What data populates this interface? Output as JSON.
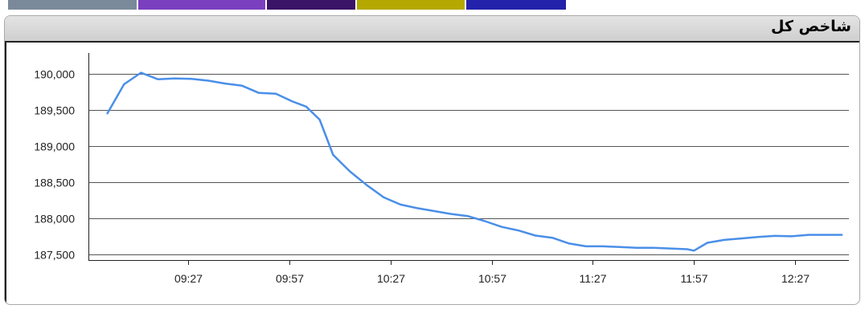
{
  "header": {
    "title": "شاخص کل",
    "strip_colors": [
      "#7a8a9a",
      "#7a3fbf",
      "#3a1466",
      "#b5a800",
      "#2222aa"
    ]
  },
  "chart_data": {
    "type": "line",
    "title": "شاخص کل",
    "xlabel": "",
    "ylabel": "",
    "x_tick_labels": [
      "09:27",
      "09:57",
      "10:27",
      "10:57",
      "11:27",
      "11:57",
      "12:27"
    ],
    "y_tick_labels": [
      "187,500",
      "188,000",
      "188,500",
      "189,000",
      "189,500",
      "190,000"
    ],
    "y_ticks": [
      187500,
      188000,
      188500,
      189000,
      189500,
      190000
    ],
    "ylim": [
      187420,
      190250
    ],
    "grid": true,
    "legend": "none",
    "series": [
      {
        "color": "#4a8fe8",
        "points": [
          [
            "09:03",
            189450
          ],
          [
            "09:08",
            189860
          ],
          [
            "09:13",
            190020
          ],
          [
            "09:18",
            189930
          ],
          [
            "09:23",
            189940
          ],
          [
            "09:28",
            189935
          ],
          [
            "09:33",
            189910
          ],
          [
            "09:38",
            189870
          ],
          [
            "09:43",
            189840
          ],
          [
            "09:48",
            189740
          ],
          [
            "09:53",
            189730
          ],
          [
            "09:58",
            189620
          ],
          [
            "10:02",
            189550
          ],
          [
            "10:06",
            189370
          ],
          [
            "10:10",
            188880
          ],
          [
            "10:15",
            188650
          ],
          [
            "10:20",
            188460
          ],
          [
            "10:25",
            188290
          ],
          [
            "10:30",
            188190
          ],
          [
            "10:35",
            188140
          ],
          [
            "10:40",
            188100
          ],
          [
            "10:45",
            188060
          ],
          [
            "10:50",
            188030
          ],
          [
            "10:55",
            187960
          ],
          [
            "11:00",
            187880
          ],
          [
            "11:05",
            187830
          ],
          [
            "11:10",
            187760
          ],
          [
            "11:15",
            187730
          ],
          [
            "11:20",
            187650
          ],
          [
            "11:25",
            187610
          ],
          [
            "11:30",
            187610
          ],
          [
            "11:35",
            187600
          ],
          [
            "11:40",
            187590
          ],
          [
            "11:45",
            187590
          ],
          [
            "11:50",
            187580
          ],
          [
            "11:55",
            187570
          ],
          [
            "11:57",
            187550
          ],
          [
            "12:01",
            187660
          ],
          [
            "12:06",
            187700
          ],
          [
            "12:11",
            187720
          ],
          [
            "12:16",
            187740
          ],
          [
            "12:21",
            187755
          ],
          [
            "12:26",
            187750
          ],
          [
            "12:31",
            187770
          ],
          [
            "12:36",
            187770
          ],
          [
            "12:41",
            187770
          ]
        ]
      }
    ]
  }
}
